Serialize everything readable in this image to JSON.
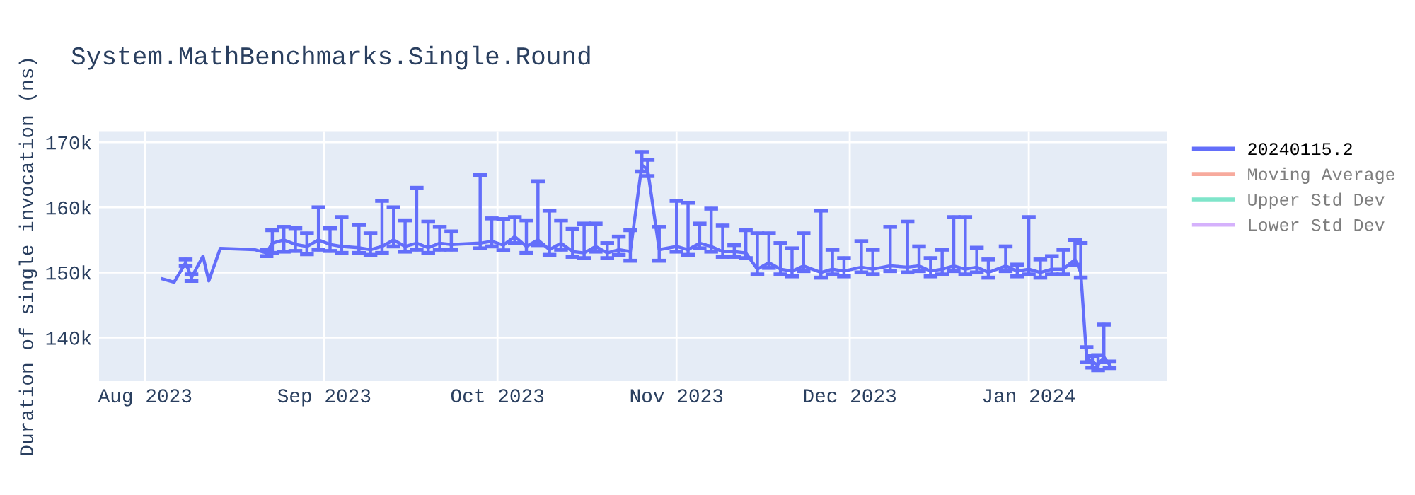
{
  "chart_data": {
    "type": "line",
    "title": "System.MathBenchmarks.Single.Round",
    "ylabel": "Duration of single invocation (ns)",
    "xlim": [
      "2023-07-24",
      "2024-01-25"
    ],
    "ylim": [
      133300,
      171700
    ],
    "xticks": [
      {
        "value": "2023-08-01",
        "label": "Aug 2023"
      },
      {
        "value": "2023-09-01",
        "label": "Sep 2023"
      },
      {
        "value": "2023-10-01",
        "label": "Oct 2023"
      },
      {
        "value": "2023-11-01",
        "label": "Nov 2023"
      },
      {
        "value": "2023-12-01",
        "label": "Dec 2023"
      },
      {
        "value": "2024-01-01",
        "label": "Jan 2024"
      }
    ],
    "yticks": [
      {
        "value": 140000,
        "label": "140k"
      },
      {
        "value": 150000,
        "label": "150k"
      },
      {
        "value": 160000,
        "label": "160k"
      },
      {
        "value": 170000,
        "label": "170k"
      }
    ],
    "grid": true,
    "legend": "top right",
    "marker": "none",
    "line_style": "solid",
    "series": [
      {
        "name": "20240115.2",
        "color": "#636efa",
        "x": [
          "2023-08-04",
          "2023-08-06",
          "2023-08-08",
          "2023-08-09",
          "2023-08-11",
          "2023-08-12",
          "2023-08-14",
          "2023-08-20",
          "2023-08-22",
          "2023-08-23",
          "2023-08-25",
          "2023-08-27",
          "2023-08-29",
          "2023-08-31",
          "2023-09-02",
          "2023-09-04",
          "2023-09-07",
          "2023-09-09",
          "2023-09-11",
          "2023-09-13",
          "2023-09-15",
          "2023-09-17",
          "2023-09-19",
          "2023-09-21",
          "2023-09-23",
          "2023-09-28",
          "2023-09-30",
          "2023-10-02",
          "2023-10-04",
          "2023-10-06",
          "2023-10-08",
          "2023-10-10",
          "2023-10-12",
          "2023-10-14",
          "2023-10-16",
          "2023-10-18",
          "2023-10-20",
          "2023-10-22",
          "2023-10-24",
          "2023-10-26",
          "2023-10-27",
          "2023-10-29",
          "2023-11-01",
          "2023-11-03",
          "2023-11-05",
          "2023-11-07",
          "2023-11-09",
          "2023-11-11",
          "2023-11-13",
          "2023-11-15",
          "2023-11-17",
          "2023-11-19",
          "2023-11-21",
          "2023-11-23",
          "2023-11-26",
          "2023-11-28",
          "2023-11-30",
          "2023-12-03",
          "2023-12-05",
          "2023-12-08",
          "2023-12-11",
          "2023-12-13",
          "2023-12-15",
          "2023-12-17",
          "2023-12-19",
          "2023-12-21",
          "2023-12-23",
          "2023-12-25",
          "2023-12-28",
          "2023-12-30",
          "2024-01-01",
          "2024-01-03",
          "2024-01-05",
          "2024-01-07",
          "2024-01-09",
          "2024-01-10",
          "2024-01-11",
          "2024-01-12",
          "2024-01-13",
          "2024-01-14",
          "2024-01-15"
        ],
        "values": [
          149000,
          148500,
          151500,
          149200,
          152500,
          148700,
          153700,
          153500,
          153000,
          154500,
          155000,
          154300,
          154000,
          155000,
          154300,
          154000,
          153800,
          153500,
          154000,
          155000,
          154000,
          154500,
          153800,
          154500,
          154300,
          154500,
          154800,
          154200,
          155500,
          154000,
          155000,
          153500,
          154500,
          153200,
          153000,
          154000,
          153000,
          153500,
          153200,
          166500,
          165800,
          153500,
          154000,
          153500,
          154500,
          154000,
          153200,
          153200,
          153000,
          150500,
          151500,
          150500,
          150200,
          151000,
          150000,
          150500,
          150200,
          150800,
          150500,
          151000,
          150800,
          151000,
          150200,
          150500,
          151000,
          150500,
          150800,
          150000,
          151000,
          150200,
          150500,
          150000,
          150500,
          150500,
          152000,
          150000,
          137000,
          136200,
          135800,
          137000,
          135800
        ],
        "errors": [
          null,
          null,
          [
            151000,
            152000
          ],
          [
            148700,
            149700
          ],
          null,
          null,
          null,
          null,
          [
            152500,
            153500
          ],
          [
            153000,
            156500
          ],
          [
            153200,
            157000
          ],
          [
            153300,
            156800
          ],
          [
            152800,
            156000
          ],
          [
            153500,
            160000
          ],
          [
            153300,
            156800
          ],
          [
            153000,
            158500
          ],
          [
            153000,
            157300
          ],
          [
            152700,
            156000
          ],
          [
            153000,
            161000
          ],
          [
            154000,
            160000
          ],
          [
            153200,
            158000
          ],
          [
            153500,
            163000
          ],
          [
            153000,
            157800
          ],
          [
            153500,
            157000
          ],
          [
            153500,
            156300
          ],
          [
            153700,
            165000
          ],
          [
            154000,
            158300
          ],
          [
            153400,
            158200
          ],
          [
            154500,
            158500
          ],
          [
            153000,
            158000
          ],
          [
            154200,
            164000
          ],
          [
            152700,
            159500
          ],
          [
            153500,
            158000
          ],
          [
            152400,
            156700
          ],
          [
            152200,
            157500
          ],
          [
            153200,
            157500
          ],
          [
            152200,
            154500
          ],
          [
            152700,
            155500
          ],
          [
            151800,
            156500
          ],
          [
            165500,
            168500
          ],
          [
            164800,
            167300
          ],
          [
            151800,
            157000
          ],
          [
            153200,
            161000
          ],
          [
            152700,
            160700
          ],
          [
            153700,
            157500
          ],
          [
            153200,
            159800
          ],
          [
            152400,
            157200
          ],
          [
            152400,
            154200
          ],
          [
            152200,
            156500
          ],
          [
            149700,
            156000
          ],
          [
            150700,
            156000
          ],
          [
            149700,
            154500
          ],
          [
            149400,
            153700
          ],
          [
            150200,
            156000
          ],
          [
            149200,
            159500
          ],
          [
            149700,
            153500
          ],
          [
            149400,
            152200
          ],
          [
            150000,
            154800
          ],
          [
            149700,
            153500
          ],
          [
            150200,
            157000
          ],
          [
            150000,
            157800
          ],
          [
            150200,
            154000
          ],
          [
            149400,
            152200
          ],
          [
            149700,
            153500
          ],
          [
            150200,
            158500
          ],
          [
            149700,
            158500
          ],
          [
            150000,
            153800
          ],
          [
            149200,
            152000
          ],
          [
            150200,
            154000
          ],
          [
            149400,
            151200
          ],
          [
            149700,
            158500
          ],
          [
            149200,
            152000
          ],
          [
            149700,
            152500
          ],
          [
            149700,
            153500
          ],
          [
            151200,
            155000
          ],
          [
            149200,
            154500
          ],
          [
            136200,
            138500
          ],
          [
            135400,
            137200
          ],
          [
            135000,
            137300
          ],
          [
            136200,
            142000
          ],
          [
            135300,
            136300
          ]
        ]
      },
      {
        "name": "Moving Average",
        "color": "#ef553b"
      },
      {
        "name": "Upper Std Dev",
        "color": "#00cc96"
      },
      {
        "name": "Lower Std Dev",
        "color": "#ab63fa"
      }
    ]
  }
}
